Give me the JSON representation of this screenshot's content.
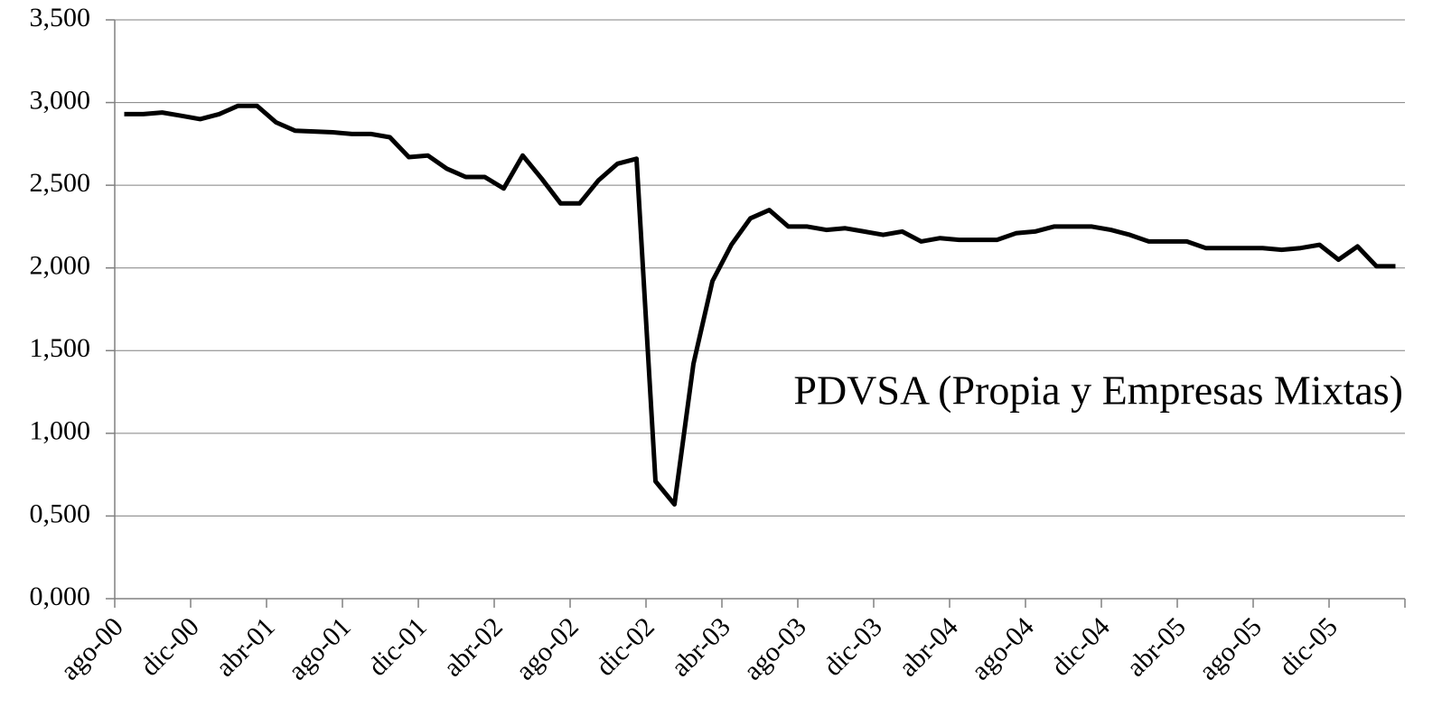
{
  "chart_data": {
    "type": "line",
    "annotation": "PDVSA (Propia y Empresas Mixtas)",
    "categories": [
      "ago-00",
      null,
      null,
      null,
      "dic-00",
      null,
      null,
      null,
      "abr-01",
      null,
      null,
      null,
      "ago-01",
      null,
      null,
      null,
      "dic-01",
      null,
      null,
      null,
      "abr-02",
      null,
      null,
      null,
      "ago-02",
      null,
      null,
      null,
      "dic-02",
      null,
      null,
      null,
      "abr-03",
      null,
      null,
      null,
      "ago-03",
      null,
      null,
      null,
      "dic-03",
      null,
      null,
      null,
      "abr-04",
      null,
      null,
      null,
      "ago-04",
      null,
      null,
      null,
      "dic-04",
      null,
      null,
      null,
      "abr-05",
      null,
      null,
      null,
      "ago-05",
      null,
      null,
      null,
      "dic-05",
      null,
      null,
      null
    ],
    "values": [
      2930,
      2930,
      2940,
      2920,
      2900,
      2930,
      2980,
      2980,
      2880,
      2830,
      2825,
      2820,
      2810,
      2810,
      2790,
      2670,
      2680,
      2600,
      2550,
      2550,
      2480,
      2680,
      2540,
      2390,
      2390,
      2530,
      2630,
      2660,
      710,
      570,
      1420,
      1920,
      2140,
      2300,
      2350,
      2250,
      2250,
      2230,
      2240,
      2220,
      2200,
      2220,
      2160,
      2180,
      2170,
      2170,
      2170,
      2210,
      2220,
      2250,
      2250,
      2250,
      2230,
      2200,
      2160,
      2160,
      2160,
      2120,
      2120,
      2120,
      2120,
      2110,
      2120,
      2140,
      2050,
      2130,
      2010,
      2010
    ],
    "color": "#000000",
    "ylim": [
      0,
      3500
    ],
    "yticks": [
      {
        "value": 0,
        "label": "0,000"
      },
      {
        "value": 500,
        "label": "0,500"
      },
      {
        "value": 1000,
        "label": "1,000"
      },
      {
        "value": 1500,
        "label": "1,500"
      },
      {
        "value": 2000,
        "label": "2,000"
      },
      {
        "value": 2500,
        "label": "2,500"
      },
      {
        "value": 3000,
        "label": "3,000"
      },
      {
        "value": 3500,
        "label": "3,500"
      }
    ],
    "grid": true
  }
}
